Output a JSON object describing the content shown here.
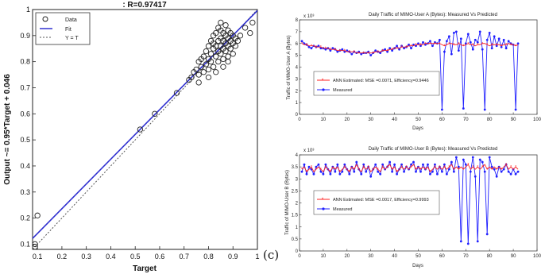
{
  "panel_label": "(c)",
  "colors": {
    "fit": "#3030d0",
    "data": "#222222",
    "estimated": "#ff2020",
    "measured": "#2020ff"
  },
  "chart_data": [
    {
      "type": "scatter",
      "title": ": R=0.97417",
      "xlabel": "Target",
      "ylabel": "Output ~= 0.95*Target + 0.046",
      "xlim": [
        0.08,
        1
      ],
      "ylim": [
        0.08,
        1
      ],
      "xticks": [
        "0.1",
        "0.2",
        "0.3",
        "0.4",
        "0.5",
        "0.6",
        "0.7",
        "0.8",
        "0.9",
        "1"
      ],
      "yticks": [
        "0.1",
        "0.2",
        "0.3",
        "0.4",
        "0.5",
        "0.6",
        "0.7",
        "0.8",
        "0.9",
        "1"
      ],
      "legend": {
        "placement": "top-left",
        "entries": [
          "Data",
          "Fit",
          "Y = T"
        ]
      },
      "fit": {
        "slope": 0.95,
        "intercept": 0.046
      },
      "points": [
        [
          0.09,
          0.1
        ],
        [
          0.09,
          0.09
        ],
        [
          0.1,
          0.21
        ],
        [
          0.52,
          0.54
        ],
        [
          0.58,
          0.6
        ],
        [
          0.67,
          0.68
        ],
        [
          0.72,
          0.73
        ],
        [
          0.73,
          0.74
        ],
        [
          0.74,
          0.76
        ],
        [
          0.75,
          0.77
        ],
        [
          0.76,
          0.75
        ],
        [
          0.76,
          0.8
        ],
        [
          0.77,
          0.78
        ],
        [
          0.77,
          0.81
        ],
        [
          0.78,
          0.76
        ],
        [
          0.78,
          0.82
        ],
        [
          0.79,
          0.79
        ],
        [
          0.79,
          0.84
        ],
        [
          0.8,
          0.77
        ],
        [
          0.8,
          0.81
        ],
        [
          0.8,
          0.86
        ],
        [
          0.81,
          0.8
        ],
        [
          0.81,
          0.83
        ],
        [
          0.81,
          0.88
        ],
        [
          0.82,
          0.78
        ],
        [
          0.82,
          0.85
        ],
        [
          0.82,
          0.9
        ],
        [
          0.83,
          0.82
        ],
        [
          0.83,
          0.86
        ],
        [
          0.83,
          0.91
        ],
        [
          0.84,
          0.8
        ],
        [
          0.84,
          0.84
        ],
        [
          0.84,
          0.88
        ],
        [
          0.84,
          0.93
        ],
        [
          0.85,
          0.83
        ],
        [
          0.85,
          0.86
        ],
        [
          0.85,
          0.89
        ],
        [
          0.85,
          0.95
        ],
        [
          0.86,
          0.81
        ],
        [
          0.86,
          0.85
        ],
        [
          0.86,
          0.88
        ],
        [
          0.86,
          0.91
        ],
        [
          0.87,
          0.84
        ],
        [
          0.87,
          0.87
        ],
        [
          0.87,
          0.9
        ],
        [
          0.87,
          0.94
        ],
        [
          0.88,
          0.82
        ],
        [
          0.88,
          0.86
        ],
        [
          0.88,
          0.89
        ],
        [
          0.88,
          0.92
        ],
        [
          0.89,
          0.85
        ],
        [
          0.89,
          0.88
        ],
        [
          0.89,
          0.91
        ],
        [
          0.9,
          0.83
        ],
        [
          0.9,
          0.87
        ],
        [
          0.9,
          0.9
        ],
        [
          0.91,
          0.86
        ],
        [
          0.91,
          0.89
        ],
        [
          0.92,
          0.88
        ],
        [
          0.93,
          0.9
        ],
        [
          0.95,
          0.93
        ],
        [
          0.97,
          0.91
        ],
        [
          0.98,
          0.95
        ],
        [
          0.8,
          0.74
        ],
        [
          0.83,
          0.76
        ],
        [
          0.86,
          0.78
        ],
        [
          0.88,
          0.8
        ],
        [
          0.76,
          0.72
        ],
        [
          0.85,
          0.92
        ],
        [
          0.82,
          0.87
        ]
      ]
    },
    {
      "type": "line",
      "title": "Daily Traffic of MIMO-User A (Bytes): Measured Vs Predicted",
      "exponent": "x 10³",
      "xlabel": "Days",
      "ylabel": "Traffic of MIMO-User A (Bytes)",
      "xlim": [
        0,
        100
      ],
      "ylim": [
        0,
        8
      ],
      "xticks": [
        "0",
        "10",
        "20",
        "30",
        "40",
        "50",
        "60",
        "70",
        "80",
        "90",
        "100"
      ],
      "yticks": [
        "0",
        "1",
        "2",
        "3",
        "4",
        "5",
        "6",
        "7",
        "8"
      ],
      "legend": {
        "placement": "bottom-left",
        "entries": [
          "ANN Estimated: MSE =0.0071, Efficiency=0.9446",
          "Measured"
        ]
      },
      "days": [
        1,
        2,
        3,
        4,
        5,
        6,
        7,
        8,
        9,
        10,
        11,
        12,
        13,
        14,
        15,
        16,
        17,
        18,
        19,
        20,
        21,
        22,
        23,
        24,
        25,
        26,
        27,
        28,
        29,
        30,
        31,
        32,
        33,
        34,
        35,
        36,
        37,
        38,
        39,
        40,
        41,
        42,
        43,
        44,
        45,
        46,
        47,
        48,
        49,
        50,
        51,
        52,
        53,
        54,
        55,
        56,
        57,
        58,
        59,
        60,
        61,
        62,
        63,
        64,
        65,
        66,
        67,
        68,
        69,
        70,
        71,
        72,
        73,
        74,
        75,
        76,
        77,
        78,
        79,
        80,
        81,
        82,
        83,
        84,
        85,
        86,
        87,
        88,
        89,
        90,
        91,
        92
      ],
      "series": [
        {
          "name": "Estimated",
          "values": [
            6.0,
            5.9,
            5.9,
            5.8,
            5.8,
            5.8,
            5.7,
            5.7,
            5.7,
            5.6,
            5.6,
            5.6,
            5.5,
            5.5,
            5.5,
            5.4,
            5.4,
            5.4,
            5.4,
            5.3,
            5.3,
            5.3,
            5.3,
            5.2,
            5.2,
            5.2,
            5.2,
            5.2,
            5.2,
            5.2,
            5.2,
            5.3,
            5.3,
            5.3,
            5.4,
            5.4,
            5.4,
            5.5,
            5.5,
            5.6,
            5.6,
            5.6,
            5.7,
            5.7,
            5.7,
            5.8,
            5.8,
            5.8,
            5.9,
            5.9,
            5.9,
            5.9,
            6.0,
            6.0,
            6.0,
            6.0,
            6.0,
            6.0,
            6.0,
            5.9,
            5.8,
            5.9,
            6.0,
            6.0,
            5.9,
            5.9,
            6.0,
            5.9,
            5.8,
            5.9,
            6.0,
            5.9,
            5.9,
            5.8,
            5.9,
            5.9,
            6.0,
            6.0,
            5.9,
            5.8,
            5.9,
            5.9,
            5.9,
            5.9,
            5.8,
            5.9,
            5.9,
            6.0,
            5.9,
            5.9,
            5.8,
            5.9
          ]
        },
        {
          "name": "Measured",
          "values": [
            6.2,
            6.0,
            5.9,
            5.7,
            5.6,
            5.8,
            5.7,
            5.8,
            5.6,
            5.6,
            5.5,
            5.6,
            5.4,
            5.6,
            5.5,
            5.3,
            5.4,
            5.5,
            5.3,
            5.4,
            5.3,
            5.1,
            5.3,
            5.2,
            5.3,
            5.1,
            5.2,
            5.2,
            5.3,
            5.0,
            5.2,
            5.4,
            5.3,
            5.2,
            5.4,
            5.5,
            5.3,
            5.6,
            5.4,
            5.6,
            5.8,
            5.5,
            5.8,
            5.6,
            5.7,
            5.9,
            5.6,
            5.9,
            5.8,
            6.0,
            5.8,
            6.1,
            5.9,
            6.0,
            6.2,
            5.8,
            6.1,
            6.0,
            6.3,
            0.4,
            5.3,
            6.2,
            6.6,
            5.1,
            6.9,
            7.0,
            5.4,
            6.4,
            0.5,
            6.0,
            6.8,
            6.1,
            5.5,
            6.3,
            6.1,
            7.0,
            5.5,
            0.4,
            6.3,
            6.9,
            5.6,
            6.6,
            5.8,
            6.4,
            5.7,
            6.3,
            5.6,
            6.2,
            6.0,
            5.9,
            0.4,
            6.0
          ]
        }
      ]
    },
    {
      "type": "line",
      "title": "Daily Traffic of MIMO-User B (Bytes): Measured Vs Predicted",
      "exponent": "x 10³",
      "xlabel": "Days",
      "ylabel": "Traffic of MIMO-User B (Bytes)",
      "xlim": [
        0,
        100
      ],
      "ylim": [
        0,
        4
      ],
      "xticks": [
        "0",
        "10",
        "20",
        "30",
        "40",
        "50",
        "60",
        "70",
        "80",
        "90",
        "100"
      ],
      "yticks": [
        "0",
        "0.5",
        "1",
        "1.5",
        "2",
        "2.5",
        "3",
        "3.5",
        "4"
      ],
      "legend": {
        "placement": "bottom-left",
        "entries": [
          "ANN Estimated: MSE =0.0017, Efficiency=0.9993",
          "Measured"
        ]
      },
      "days": [
        1,
        2,
        3,
        4,
        5,
        6,
        7,
        8,
        9,
        10,
        11,
        12,
        13,
        14,
        15,
        16,
        17,
        18,
        19,
        20,
        21,
        22,
        23,
        24,
        25,
        26,
        27,
        28,
        29,
        30,
        31,
        32,
        33,
        34,
        35,
        36,
        37,
        38,
        39,
        40,
        41,
        42,
        43,
        44,
        45,
        46,
        47,
        48,
        49,
        50,
        51,
        52,
        53,
        54,
        55,
        56,
        57,
        58,
        59,
        60,
        61,
        62,
        63,
        64,
        65,
        66,
        67,
        68,
        69,
        70,
        71,
        72,
        73,
        74,
        75,
        76,
        77,
        78,
        79,
        80,
        81,
        82,
        83,
        84,
        85,
        86,
        87,
        88,
        89,
        90,
        91,
        92
      ],
      "series": [
        {
          "name": "Estimated",
          "values": [
            3.4,
            3.5,
            3.3,
            3.4,
            3.5,
            3.3,
            3.4,
            3.5,
            3.4,
            3.3,
            3.5,
            3.4,
            3.3,
            3.5,
            3.4,
            3.5,
            3.3,
            3.4,
            3.5,
            3.4,
            3.3,
            3.5,
            3.4,
            3.6,
            3.4,
            3.3,
            3.5,
            3.4,
            3.5,
            3.3,
            3.4,
            3.5,
            3.4,
            3.3,
            3.5,
            3.4,
            3.5,
            3.6,
            3.4,
            3.5,
            3.3,
            3.4,
            3.5,
            3.4,
            3.5,
            3.4,
            3.5,
            3.6,
            3.4,
            3.5,
            3.4,
            3.5,
            3.4,
            3.5,
            3.3,
            3.4,
            3.5,
            3.4,
            3.5,
            3.4,
            3.5,
            3.4,
            3.5,
            3.6,
            3.4,
            3.5,
            3.4,
            3.5,
            3.4,
            3.5,
            3.6,
            3.4,
            3.5,
            3.4,
            3.5,
            3.4,
            3.5,
            3.6,
            3.4,
            3.5,
            3.4,
            3.5,
            3.4,
            3.5,
            3.4,
            3.5,
            3.6,
            3.4,
            3.5,
            3.4,
            3.5,
            3.4
          ]
        },
        {
          "name": "Measured",
          "values": [
            3.3,
            3.6,
            3.2,
            3.5,
            3.4,
            3.2,
            3.5,
            3.6,
            3.3,
            3.2,
            3.6,
            3.4,
            3.2,
            3.5,
            3.3,
            3.6,
            3.2,
            3.3,
            3.6,
            3.4,
            3.2,
            3.5,
            3.3,
            3.7,
            3.4,
            3.2,
            3.6,
            3.3,
            3.5,
            3.1,
            3.4,
            3.6,
            3.3,
            3.2,
            3.6,
            3.4,
            3.5,
            3.7,
            3.3,
            3.6,
            3.2,
            3.4,
            3.6,
            3.3,
            3.5,
            3.4,
            3.6,
            3.7,
            3.3,
            3.5,
            3.3,
            3.6,
            3.4,
            3.6,
            3.2,
            3.3,
            3.6,
            3.2,
            3.5,
            3.3,
            3.6,
            3.2,
            3.4,
            3.7,
            3.3,
            3.9,
            3.5,
            0.4,
            3.8,
            3.6,
            0.3,
            3.3,
            3.9,
            3.1,
            0.4,
            3.8,
            3.7,
            3.3,
            0.7,
            3.9,
            3.5,
            3.4,
            3.1,
            3.5,
            3.3,
            3.4,
            3.6,
            3.3,
            3.2,
            3.4,
            3.2,
            3.3
          ]
        }
      ]
    }
  ]
}
